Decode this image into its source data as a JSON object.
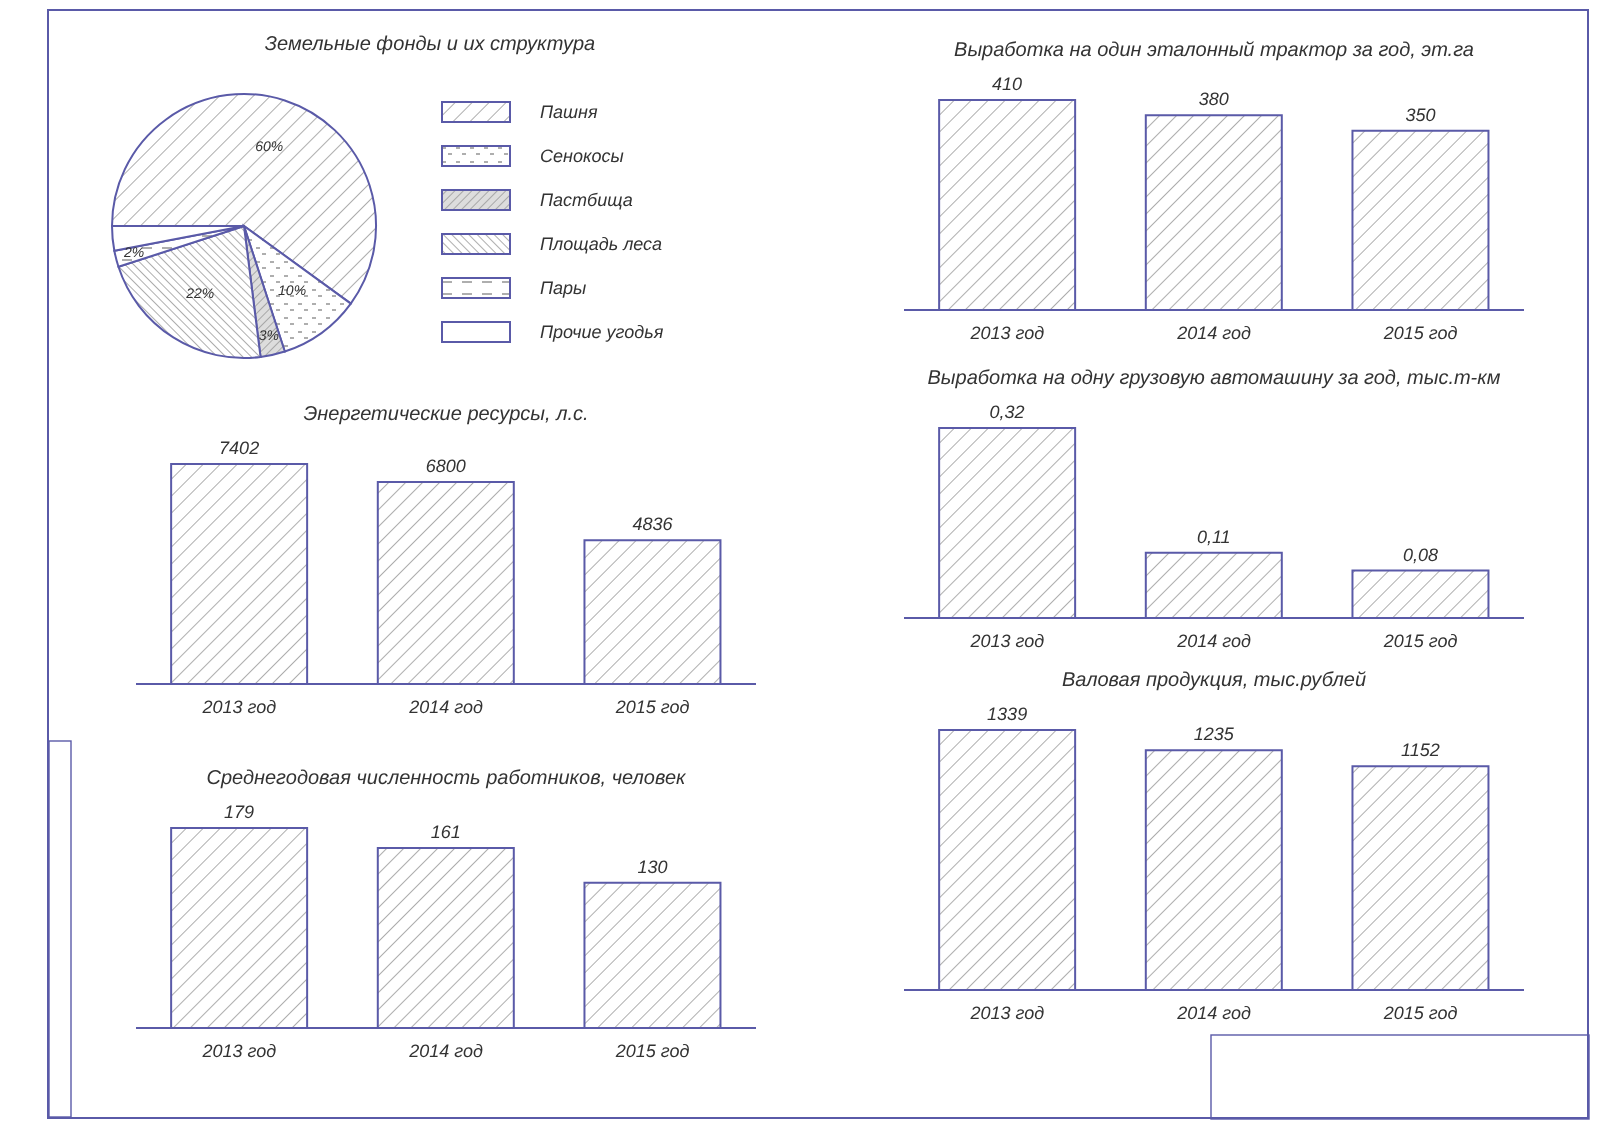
{
  "chart_data": [
    {
      "type": "pie",
      "title": "Земельные фонды и их структура",
      "categories": [
        "Пашня",
        "Сенокосы",
        "Пастбища",
        "Площадь леса",
        "Пары",
        "Прочие угодья"
      ],
      "values": [
        60,
        10,
        3,
        22,
        2,
        3
      ],
      "value_labels": [
        "60%",
        "10%",
        "3%",
        "22%",
        "2%",
        null
      ],
      "legend": "right"
    },
    {
      "type": "bar",
      "title": "Выработка на один эталонный трактор за год, эт.га",
      "categories": [
        "2013 год",
        "2014 год",
        "2015 год"
      ],
      "values": [
        410,
        380,
        350
      ],
      "value_labels": [
        "410",
        "380",
        "350"
      ]
    },
    {
      "type": "bar",
      "title": "Энергетические ресурсы, л.с.",
      "categories": [
        "2013 год",
        "2014 год",
        "2015 год"
      ],
      "values": [
        7402,
        6800,
        4836
      ],
      "value_labels": [
        "7402",
        "6800",
        "4836"
      ]
    },
    {
      "type": "bar",
      "title": "Выработка на одну грузовую автомашину за год, тыс.т-км",
      "categories": [
        "2013 год",
        "2014 год",
        "2015 год"
      ],
      "values": [
        0.32,
        0.11,
        0.08
      ],
      "value_labels": [
        "0,32",
        "0,11",
        "0,08"
      ]
    },
    {
      "type": "bar",
      "title": "Среднегодовая численность работников, человек",
      "categories": [
        "2013 год",
        "2014 год",
        "2015 год"
      ],
      "values": [
        179,
        161,
        130
      ],
      "value_labels": [
        "179",
        "161",
        "130"
      ]
    },
    {
      "type": "bar",
      "title": "Валовая продукция, тыс.рублей",
      "categories": [
        "2013 год",
        "2014 год",
        "2015 год"
      ],
      "values": [
        1339,
        1235,
        1152
      ],
      "value_labels": [
        "1339",
        "1235",
        "1152"
      ]
    }
  ]
}
